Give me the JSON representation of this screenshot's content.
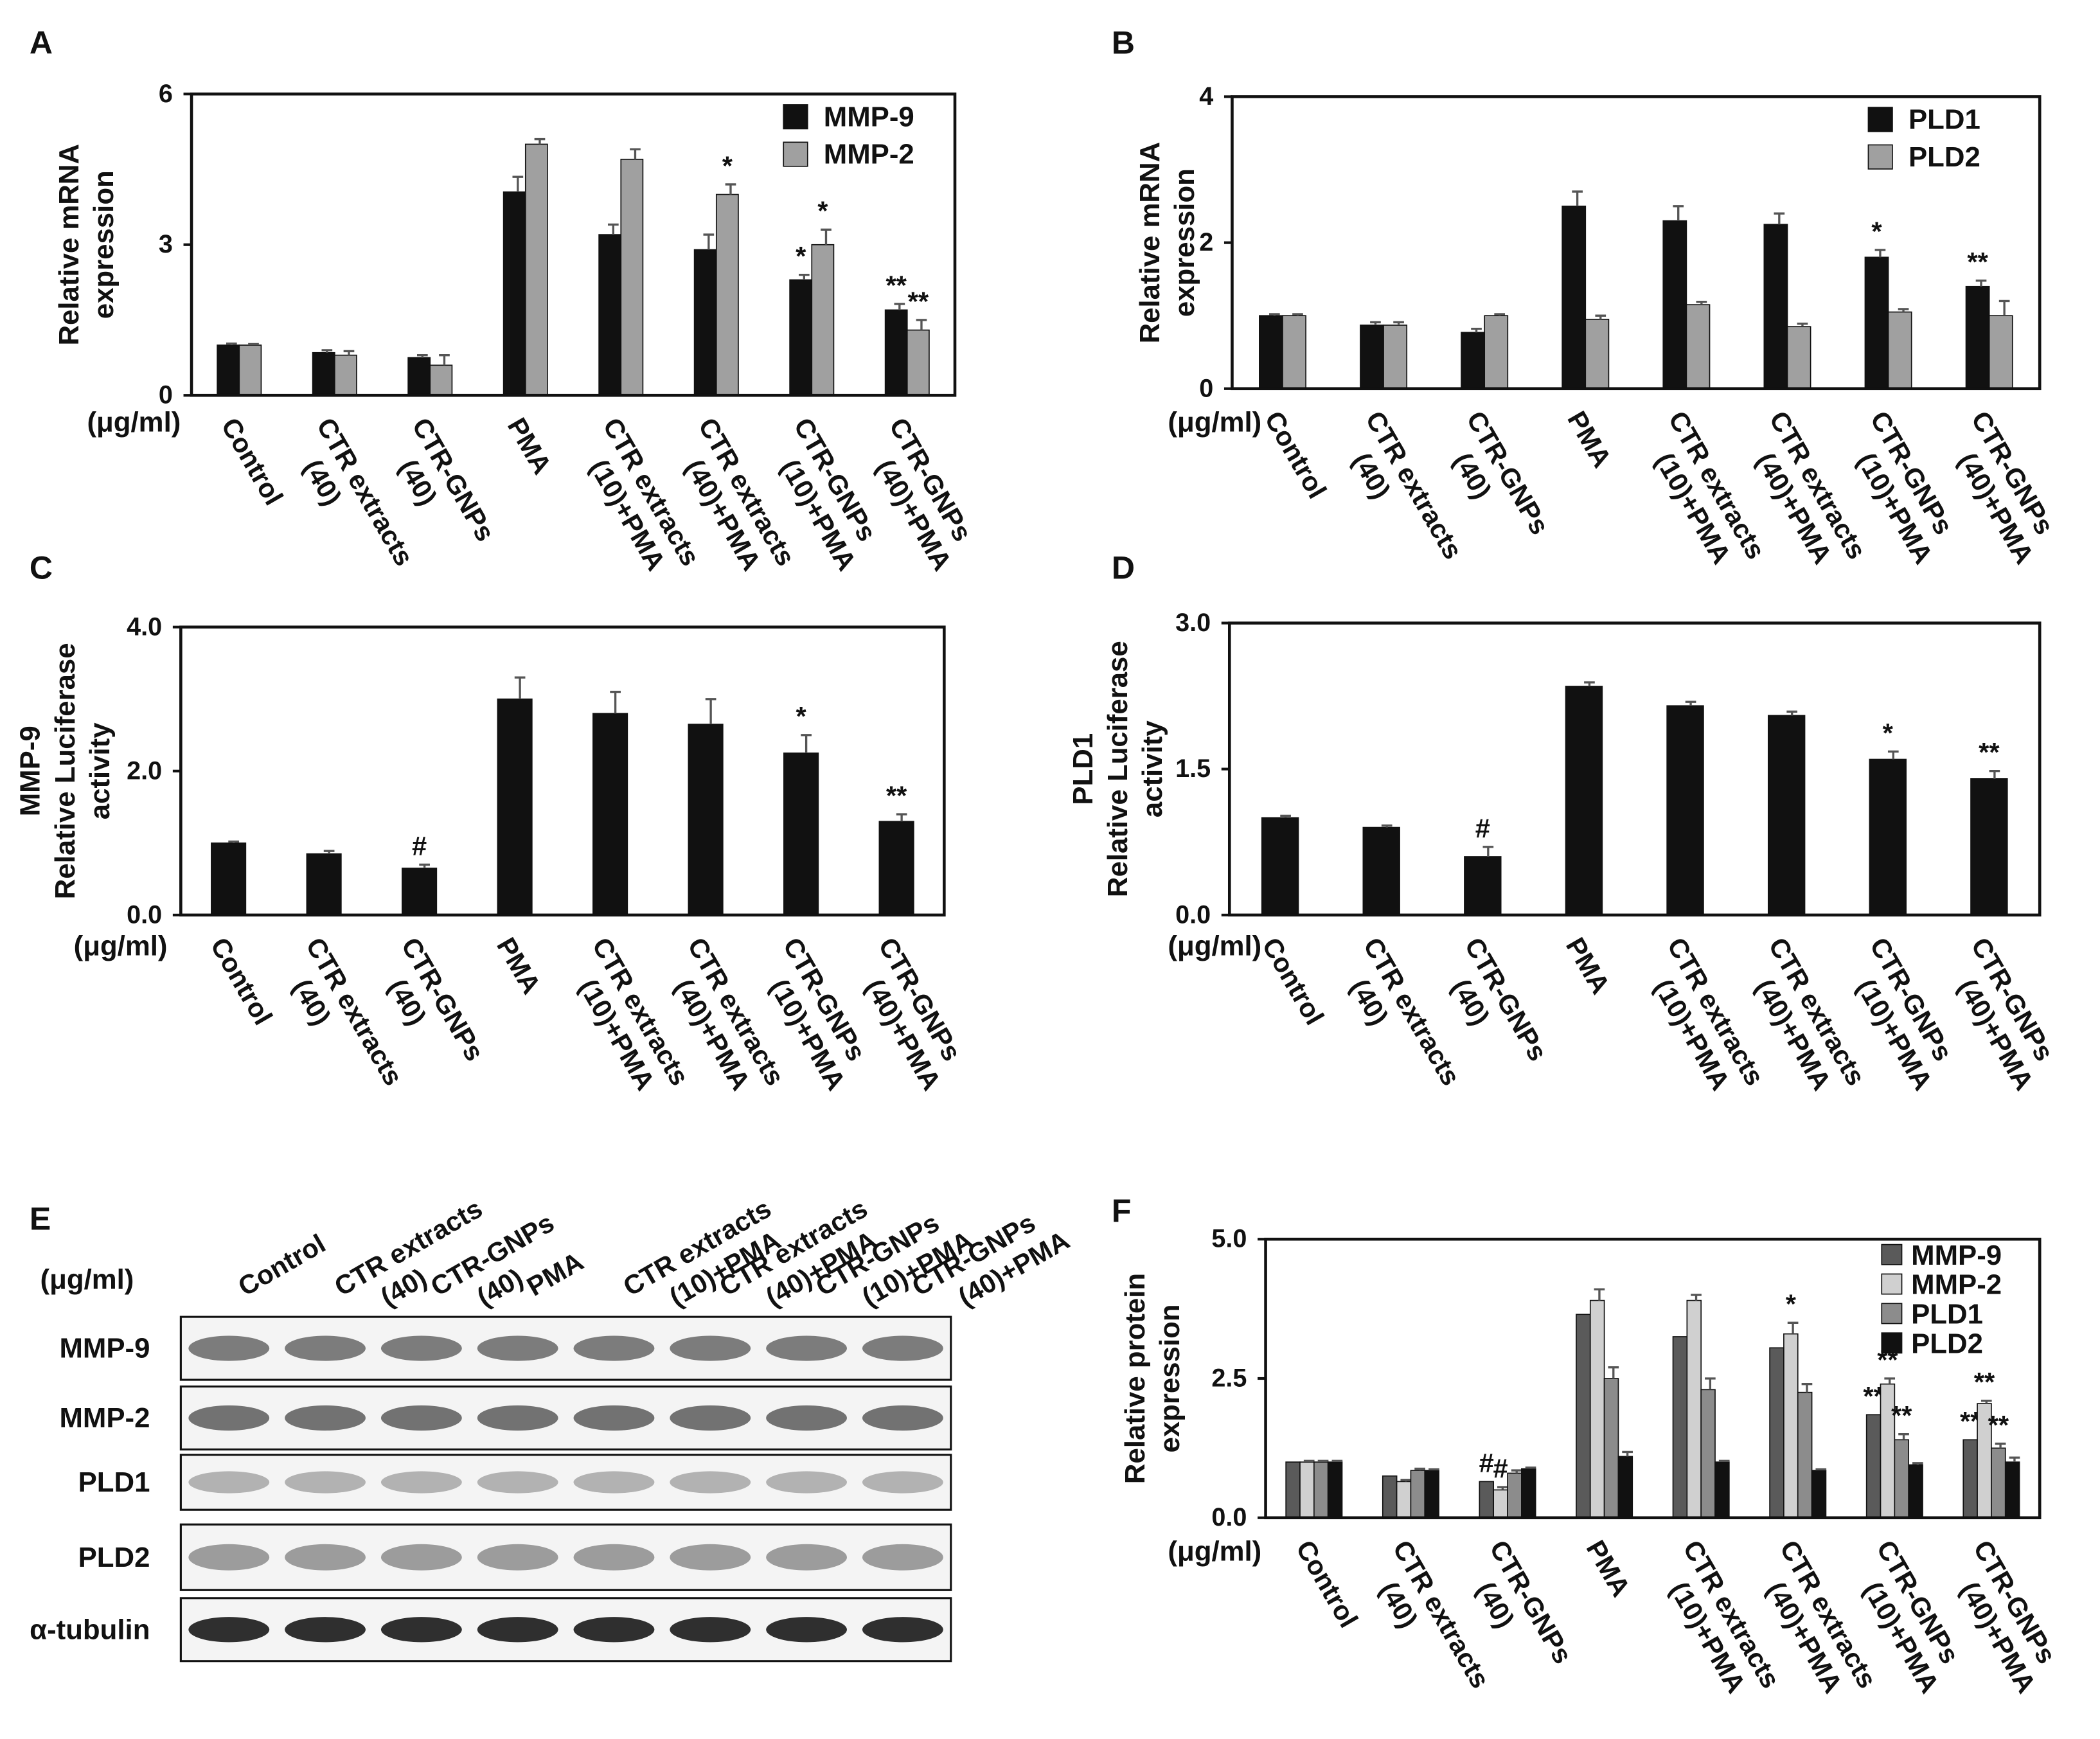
{
  "chart_data": [
    {
      "type": "bar",
      "panel": "A",
      "ylabel": [
        "Relative mRNA",
        "expression"
      ],
      "unit_label": "(μg/ml)",
      "categories": [
        [
          "Control"
        ],
        [
          "CTR extracts",
          "(40)"
        ],
        [
          "CTR-GNPs",
          "(40)"
        ],
        [
          "PMA"
        ],
        [
          "CTR extracts",
          "(10)+PMA"
        ],
        [
          "CTR extracts",
          "(40)+PMA"
        ],
        [
          "CTR-GNPs",
          "(10)+PMA"
        ],
        [
          "CTR-GNPs",
          "(40)+PMA"
        ]
      ],
      "series": [
        {
          "name": "MMP-9",
          "color": "#111111",
          "values": [
            1.0,
            0.85,
            0.75,
            4.05,
            3.2,
            2.9,
            2.3,
            1.7
          ],
          "errors": [
            0.03,
            0.05,
            0.05,
            0.3,
            0.2,
            0.3,
            0.1,
            0.12
          ],
          "annotations": [
            null,
            null,
            null,
            null,
            null,
            null,
            "*",
            "**"
          ]
        },
        {
          "name": "MMP-2",
          "color": "#a0a0a0",
          "values": [
            1.0,
            0.8,
            0.6,
            5.0,
            4.7,
            4.0,
            3.0,
            1.3
          ],
          "errors": [
            0.02,
            0.08,
            0.2,
            0.1,
            0.2,
            0.2,
            0.3,
            0.2
          ],
          "annotations": [
            null,
            null,
            null,
            null,
            null,
            "*",
            "*",
            "**"
          ]
        }
      ],
      "ylim": [
        0,
        6
      ],
      "yticks": [
        0,
        3,
        6
      ],
      "legend": "upper right"
    },
    {
      "type": "bar",
      "panel": "B",
      "ylabel": [
        "Relative mRNA",
        "expression"
      ],
      "unit_label": "(μg/ml)",
      "categories": [
        [
          "Control"
        ],
        [
          "CTR extracts",
          "(40)"
        ],
        [
          "CTR-GNPs",
          "(40)"
        ],
        [
          "PMA"
        ],
        [
          "CTR extracts",
          "(10)+PMA"
        ],
        [
          "CTR extracts",
          "(40)+PMA"
        ],
        [
          "CTR-GNPs",
          "(10)+PMA"
        ],
        [
          "CTR-GNPs",
          "(40)+PMA"
        ]
      ],
      "series": [
        {
          "name": "PLD1",
          "color": "#111111",
          "values": [
            1.0,
            0.87,
            0.77,
            2.5,
            2.3,
            2.25,
            1.8,
            1.4
          ],
          "errors": [
            0.02,
            0.04,
            0.05,
            0.2,
            0.2,
            0.15,
            0.1,
            0.08
          ],
          "annotations": [
            null,
            null,
            null,
            null,
            null,
            null,
            "*",
            "**"
          ]
        },
        {
          "name": "PLD2",
          "color": "#a0a0a0",
          "values": [
            1.0,
            0.87,
            1.0,
            0.95,
            1.15,
            0.85,
            1.05,
            1.0
          ],
          "errors": [
            0.02,
            0.04,
            0.02,
            0.05,
            0.04,
            0.04,
            0.04,
            0.2
          ],
          "annotations": [
            null,
            null,
            null,
            null,
            null,
            null,
            null,
            null
          ]
        }
      ],
      "ylim": [
        0,
        4
      ],
      "yticks": [
        0,
        2,
        4
      ],
      "legend": "upper right"
    },
    {
      "type": "bar",
      "panel": "C",
      "ylabel": [
        "MMP-9",
        "Relative Luciferase",
        "activity"
      ],
      "unit_label": "(μg/ml)",
      "categories": [
        [
          "Control"
        ],
        [
          "CTR extracts",
          "(40)"
        ],
        [
          "CTR-GNPs",
          "(40)"
        ],
        [
          "PMA"
        ],
        [
          "CTR extracts",
          "(10)+PMA"
        ],
        [
          "CTR extracts",
          "(40)+PMA"
        ],
        [
          "CTR-GNPs",
          "(10)+PMA"
        ],
        [
          "CTR-GNPs",
          "(40)+PMA"
        ]
      ],
      "series": [
        {
          "color": "#111111",
          "values": [
            1.0,
            0.85,
            0.65,
            3.0,
            2.8,
            2.65,
            2.25,
            1.3
          ],
          "errors": [
            0.02,
            0.04,
            0.05,
            0.3,
            0.3,
            0.35,
            0.25,
            0.1
          ],
          "annotations": [
            null,
            null,
            "#",
            null,
            null,
            null,
            "*",
            "**"
          ]
        }
      ],
      "ylim": [
        0,
        4
      ],
      "yticks": [
        {
          "value": 0,
          "label": "0.0"
        },
        {
          "value": 2,
          "label": "2.0"
        },
        {
          "value": 4,
          "label": "4.0"
        }
      ]
    },
    {
      "type": "bar",
      "panel": "D",
      "ylabel": [
        "PLD1",
        "Relative Luciferase",
        "activity"
      ],
      "unit_label": "(μg/ml)",
      "categories": [
        [
          "Control"
        ],
        [
          "CTR extracts",
          "(40)"
        ],
        [
          "CTR-GNPs",
          "(40)"
        ],
        [
          "PMA"
        ],
        [
          "CTR extracts",
          "(10)+PMA"
        ],
        [
          "CTR extracts",
          "(40)+PMA"
        ],
        [
          "CTR-GNPs",
          "(10)+PMA"
        ],
        [
          "CTR-GNPs",
          "(40)+PMA"
        ]
      ],
      "series": [
        {
          "color": "#111111",
          "values": [
            1.0,
            0.9,
            0.6,
            2.35,
            2.15,
            2.05,
            1.6,
            1.4
          ],
          "errors": [
            0.02,
            0.02,
            0.1,
            0.04,
            0.04,
            0.04,
            0.08,
            0.08
          ],
          "annotations": [
            null,
            null,
            "#",
            null,
            null,
            null,
            "*",
            "**"
          ]
        }
      ],
      "ylim": [
        0,
        3
      ],
      "yticks": [
        {
          "value": 0,
          "label": "0.0"
        },
        {
          "value": 1.5,
          "label": "1.5"
        },
        {
          "value": 3,
          "label": "3.0"
        }
      ]
    },
    {
      "type": "bar",
      "panel": "F",
      "ylabel": [
        "Relative protein",
        "expression"
      ],
      "unit_label": "(μg/ml)",
      "categories": [
        [
          "Control"
        ],
        [
          "CTR extracts",
          "(40)"
        ],
        [
          "CTR-GNPs",
          "(40)"
        ],
        [
          "PMA"
        ],
        [
          "CTR extracts",
          "(10)+PMA"
        ],
        [
          "CTR extracts",
          "(40)+PMA"
        ],
        [
          "CTR-GNPs",
          "(10)+PMA"
        ],
        [
          "CTR-GNPs",
          "(40)+PMA"
        ]
      ],
      "series": [
        {
          "name": "MMP-9",
          "color": "#5a5a5a",
          "values": [
            1.0,
            0.75,
            0.65,
            3.65,
            3.25,
            3.05,
            1.85,
            1.4
          ],
          "annotations": [
            null,
            null,
            "#",
            null,
            null,
            null,
            "**",
            "**"
          ]
        },
        {
          "name": "MMP-2",
          "color": "#d0d0d0",
          "values": [
            1.0,
            0.65,
            0.5,
            3.9,
            3.9,
            3.3,
            2.4,
            2.05
          ],
          "errors": [
            0.02,
            0.03,
            0.05,
            0.2,
            0.1,
            0.2,
            0.1,
            0.05
          ],
          "annotations": [
            null,
            null,
            "#",
            null,
            null,
            "*",
            "**",
            "**"
          ]
        },
        {
          "name": "PLD1",
          "color": "#8c8c8c",
          "values": [
            1.0,
            0.85,
            0.8,
            2.5,
            2.3,
            2.25,
            1.4,
            1.25
          ],
          "errors": [
            0.02,
            0.03,
            0.05,
            0.2,
            0.2,
            0.15,
            0.1,
            0.08
          ],
          "annotations": [
            null,
            null,
            null,
            null,
            null,
            null,
            "**",
            "**"
          ]
        },
        {
          "name": "PLD2",
          "color": "#111111",
          "values": [
            1.0,
            0.85,
            0.88,
            1.1,
            1.0,
            0.85,
            0.95,
            1.0
          ],
          "errors": [
            0.02,
            0.02,
            0.02,
            0.08,
            0.02,
            0.02,
            0.03,
            0.08
          ],
          "annotations": [
            null,
            null,
            null,
            null,
            null,
            null,
            null,
            null
          ]
        }
      ],
      "ylim": [
        0,
        5
      ],
      "yticks": [
        {
          "value": 0,
          "label": "0.0"
        },
        {
          "value": 2.5,
          "label": "2.5"
        },
        {
          "value": 5,
          "label": "5.0"
        }
      ],
      "legend": "upper right"
    }
  ],
  "blot": {
    "panel": "E",
    "unit_label": "(μg/ml)",
    "lanes": [
      [
        "Control"
      ],
      [
        "CTR extracts",
        "(40)"
      ],
      [
        "CTR-GNPs",
        "(40)"
      ],
      [
        "PMA"
      ],
      [
        "CTR extracts",
        "(10)+PMA"
      ],
      [
        "CTR extracts",
        "(40)+PMA"
      ],
      [
        "CTR-GNPs",
        "(10)+PMA"
      ],
      [
        "CTR-GNPs",
        "(40)+PMA"
      ]
    ],
    "rows": [
      "MMP-9",
      "MMP-2",
      "PLD1",
      "PLD2",
      "α-tubulin"
    ]
  }
}
